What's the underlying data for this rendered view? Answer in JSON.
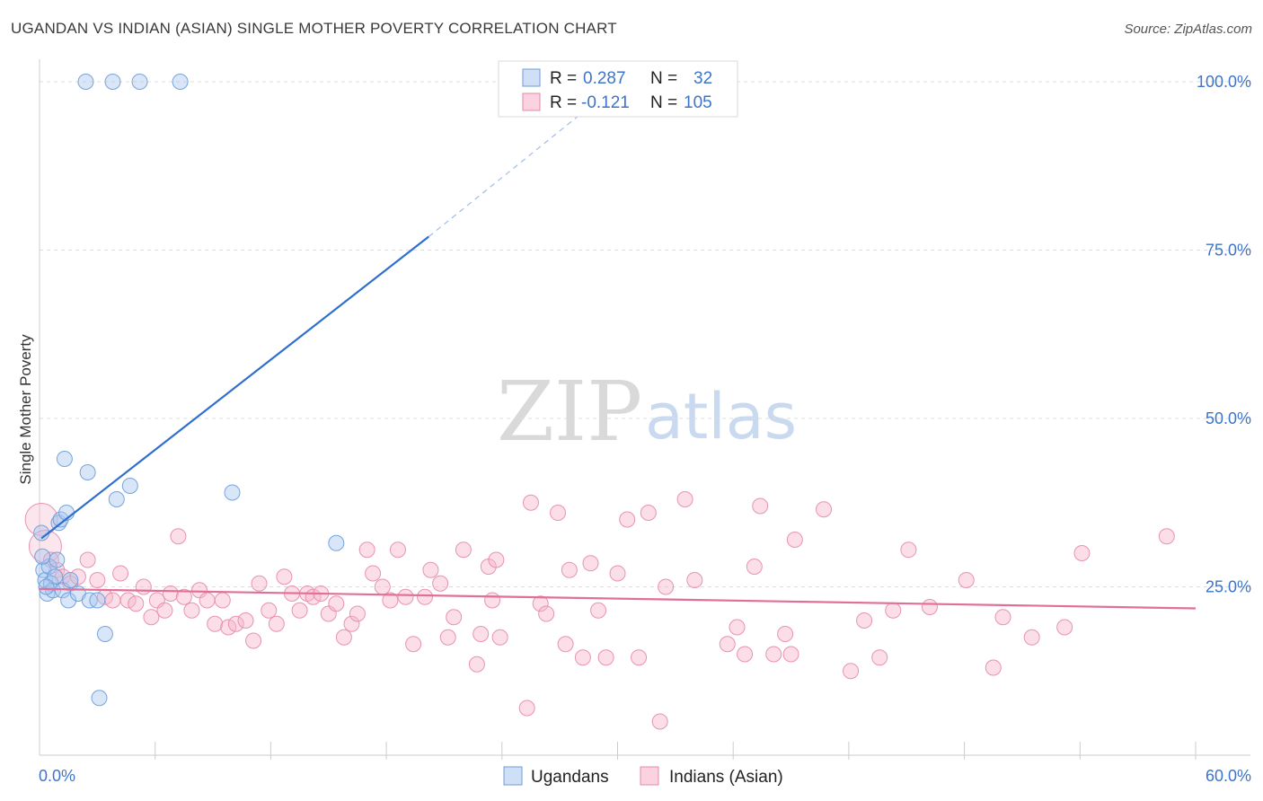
{
  "header": {
    "title": "UGANDAN VS INDIAN (ASIAN) SINGLE MOTHER POVERTY CORRELATION CHART",
    "source": "Source: ZipAtlas.com"
  },
  "watermark": {
    "zip": "ZIP",
    "atlas": "atlas"
  },
  "legend_box": {
    "rows": [
      {
        "r_label": "R =",
        "r_value": "0.287",
        "n_label": "N =",
        "n_value": "32",
        "color": "#a9c8f0"
      },
      {
        "r_label": "R =",
        "r_value": "-0.121",
        "n_label": "N =",
        "n_value": "105",
        "color": "#f6b6cb"
      }
    ]
  },
  "bottom_legend": [
    {
      "label": "Ugandans",
      "color": "#a9c8f0"
    },
    {
      "label": "Indians (Asian)",
      "color": "#f6b6cb"
    }
  ],
  "chart_data": {
    "type": "scatter",
    "ylabel": "Single Mother Poverty",
    "xlim": [
      0,
      60
    ],
    "ylim": [
      0,
      102
    ],
    "x_tick_labels": [
      {
        "value": 0,
        "label": "0.0%"
      },
      {
        "value": 60,
        "label": "60.0%"
      }
    ],
    "y_tick_labels": [
      {
        "value": 25,
        "label": "25.0%"
      },
      {
        "value": 50,
        "label": "50.0%"
      },
      {
        "value": 75,
        "label": "75.0%"
      },
      {
        "value": 100,
        "label": "100.0%"
      }
    ],
    "grid_y": [
      25,
      50,
      75,
      100
    ],
    "x_minor_ticks": [
      6,
      12,
      18,
      24,
      30,
      36,
      42,
      48,
      54,
      60
    ],
    "series": [
      {
        "name": "Ugandans",
        "color": "#a9c8f0",
        "stroke": "#6c9bd8",
        "points": [
          [
            0.1,
            33.0
          ],
          [
            0.2,
            27.5
          ],
          [
            0.3,
            26.0
          ],
          [
            0.4,
            24.0
          ],
          [
            0.5,
            28.0
          ],
          [
            0.6,
            25.5
          ],
          [
            0.7,
            24.5
          ],
          [
            0.8,
            26.5
          ],
          [
            0.9,
            29.0
          ],
          [
            1.0,
            34.5
          ],
          [
            1.1,
            35.0
          ],
          [
            1.2,
            24.5
          ],
          [
            1.3,
            44.0
          ],
          [
            1.4,
            36.0
          ],
          [
            1.5,
            23.0
          ],
          [
            2.0,
            24.0
          ],
          [
            2.4,
            100.0
          ],
          [
            2.5,
            42.0
          ],
          [
            2.6,
            23.0
          ],
          [
            3.0,
            23.0
          ],
          [
            3.1,
            8.5
          ],
          [
            3.4,
            18.0
          ],
          [
            3.8,
            100.0
          ],
          [
            4.0,
            38.0
          ],
          [
            4.7,
            40.0
          ],
          [
            5.2,
            100.0
          ],
          [
            7.3,
            100.0
          ],
          [
            10.0,
            39.0
          ],
          [
            15.4,
            31.5
          ],
          [
            0.15,
            29.5
          ],
          [
            0.35,
            25.0
          ],
          [
            1.6,
            26.0
          ]
        ],
        "trend": {
          "x0": 0.1,
          "y0": 32.2,
          "x1": 20.2,
          "y1": 77.0,
          "dash_x1": 28.0,
          "dash_y1": 95.0
        }
      },
      {
        "name": "Indians (Asian)",
        "color": "#f6b6cb",
        "stroke": "#e58aa8",
        "points": [
          [
            0.1,
            35.0
          ],
          [
            0.3,
            31.0
          ],
          [
            0.6,
            29.0
          ],
          [
            0.9,
            27.5
          ],
          [
            1.2,
            26.5
          ],
          [
            1.6,
            25.5
          ],
          [
            2.0,
            26.5
          ],
          [
            2.5,
            29.0
          ],
          [
            3.0,
            26.0
          ],
          [
            3.4,
            23.5
          ],
          [
            3.8,
            23.0
          ],
          [
            4.2,
            27.0
          ],
          [
            4.6,
            23.0
          ],
          [
            5.0,
            22.5
          ],
          [
            5.4,
            25.0
          ],
          [
            5.8,
            20.5
          ],
          [
            6.1,
            23.0
          ],
          [
            6.5,
            21.5
          ],
          [
            6.8,
            24.0
          ],
          [
            7.2,
            32.5
          ],
          [
            7.5,
            23.5
          ],
          [
            7.9,
            21.5
          ],
          [
            8.3,
            24.5
          ],
          [
            8.7,
            23.0
          ],
          [
            9.1,
            19.5
          ],
          [
            9.5,
            23.0
          ],
          [
            9.8,
            19.0
          ],
          [
            10.2,
            19.5
          ],
          [
            10.7,
            20.0
          ],
          [
            11.1,
            17.0
          ],
          [
            11.4,
            25.5
          ],
          [
            11.9,
            21.5
          ],
          [
            12.3,
            19.5
          ],
          [
            12.7,
            26.5
          ],
          [
            13.1,
            24.0
          ],
          [
            13.5,
            21.5
          ],
          [
            13.9,
            24.0
          ],
          [
            14.2,
            23.5
          ],
          [
            14.6,
            24.0
          ],
          [
            15.0,
            21.0
          ],
          [
            15.4,
            22.5
          ],
          [
            15.8,
            17.5
          ],
          [
            16.2,
            19.5
          ],
          [
            16.5,
            21.0
          ],
          [
            17.0,
            30.5
          ],
          [
            17.3,
            27.0
          ],
          [
            17.8,
            25.0
          ],
          [
            18.2,
            23.0
          ],
          [
            18.6,
            30.5
          ],
          [
            19.0,
            23.5
          ],
          [
            19.4,
            16.5
          ],
          [
            20.0,
            23.5
          ],
          [
            20.3,
            27.5
          ],
          [
            20.8,
            25.5
          ],
          [
            21.2,
            17.5
          ],
          [
            21.5,
            20.5
          ],
          [
            22.0,
            30.5
          ],
          [
            22.7,
            13.5
          ],
          [
            22.9,
            18.0
          ],
          [
            23.3,
            28.0
          ],
          [
            23.7,
            29.0
          ],
          [
            23.5,
            23.0
          ],
          [
            23.9,
            17.5
          ],
          [
            25.3,
            7.0
          ],
          [
            25.5,
            37.5
          ],
          [
            26.0,
            22.5
          ],
          [
            26.3,
            21.0
          ],
          [
            26.9,
            36.0
          ],
          [
            27.3,
            16.5
          ],
          [
            27.5,
            27.5
          ],
          [
            28.2,
            14.5
          ],
          [
            28.6,
            28.5
          ],
          [
            29.0,
            21.5
          ],
          [
            29.4,
            14.5
          ],
          [
            30.0,
            27.0
          ],
          [
            30.5,
            35.0
          ],
          [
            31.1,
            14.5
          ],
          [
            31.6,
            36.0
          ],
          [
            32.2,
            5.0
          ],
          [
            32.5,
            25.0
          ],
          [
            33.5,
            38.0
          ],
          [
            34.0,
            26.0
          ],
          [
            35.7,
            16.5
          ],
          [
            36.2,
            19.0
          ],
          [
            36.6,
            15.0
          ],
          [
            37.1,
            28.0
          ],
          [
            37.4,
            37.0
          ],
          [
            38.1,
            15.0
          ],
          [
            38.7,
            18.0
          ],
          [
            39.2,
            32.0
          ],
          [
            39.0,
            15.0
          ],
          [
            40.7,
            36.5
          ],
          [
            42.1,
            12.5
          ],
          [
            42.8,
            20.0
          ],
          [
            43.6,
            14.5
          ],
          [
            44.3,
            21.5
          ],
          [
            45.1,
            30.5
          ],
          [
            46.2,
            22.0
          ],
          [
            48.1,
            26.0
          ],
          [
            49.5,
            13.0
          ],
          [
            50.0,
            20.5
          ],
          [
            51.5,
            17.5
          ],
          [
            53.2,
            19.0
          ],
          [
            54.1,
            30.0
          ],
          [
            58.5,
            32.5
          ]
        ],
        "trend": {
          "x0": 0.0,
          "y0": 24.7,
          "x1": 60.0,
          "y1": 21.8
        }
      }
    ]
  }
}
